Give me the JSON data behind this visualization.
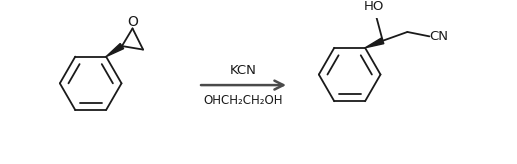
{
  "background_color": "#ffffff",
  "line_color": "#1a1a1a",
  "text_color": "#1a1a1a",
  "reagent_line1": "KCN",
  "reagent_line2": "OHCH₂CH₂OH",
  "arrow_color": "#4a4a4a",
  "figsize": [
    5.17,
    1.64
  ],
  "dpi": 100
}
